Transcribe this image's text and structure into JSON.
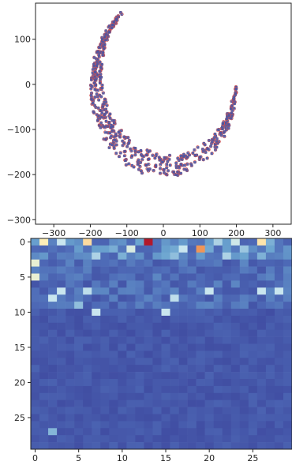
{
  "chart_data": [
    {
      "type": "scatter",
      "title": "",
      "xlabel": "",
      "ylabel": "",
      "xlim": [
        -350,
        350
      ],
      "ylim": [
        -310,
        180
      ],
      "xticks": [
        -300,
        -200,
        -100,
        0,
        100,
        200,
        300
      ],
      "xtick_labels": [
        "−300",
        "−200",
        "−100",
        "0",
        "100",
        "200",
        "300"
      ],
      "yticks": [
        100,
        0,
        -100,
        -200,
        -300
      ],
      "ytick_labels": [
        "100",
        "0",
        "−100",
        "−200",
        "−300"
      ],
      "grid": false,
      "arc": {
        "center": [
          0,
          0
        ],
        "radius_min": 150,
        "radius_max": 200,
        "angle_start_deg": 0,
        "angle_end_deg": -235,
        "band_center_offset_y": -10
      },
      "series": [
        {
          "marker": "circle-open",
          "color": "#d9534f"
        },
        {
          "marker": "square-filled",
          "color": "#4a55a2"
        }
      ]
    },
    {
      "type": "heatmap",
      "title": "",
      "rows": 30,
      "cols": 30,
      "xticks": [
        0,
        5,
        10,
        15,
        20,
        25
      ],
      "xtick_labels": [
        "0",
        "5",
        "10",
        "15",
        "20",
        "25"
      ],
      "yticks": [
        0,
        5,
        10,
        15,
        20,
        25
      ],
      "ytick_labels": [
        "0",
        "5",
        "10",
        "15",
        "20",
        "25"
      ],
      "colormap": [
        "#3f4aa0",
        "#4f6cb8",
        "#6aa3cf",
        "#c9e6ef",
        "#fff6c0",
        "#f7a35c",
        "#b2182b"
      ],
      "highlights": [
        {
          "row": 0,
          "col": 13,
          "v": 1.0
        },
        {
          "row": 1,
          "col": 19,
          "v": 0.85
        },
        {
          "row": 0,
          "col": 6,
          "v": 0.72
        },
        {
          "row": 0,
          "col": 26,
          "v": 0.7
        },
        {
          "row": 0,
          "col": 1,
          "v": 0.68
        },
        {
          "row": 3,
          "col": 0,
          "v": 0.6
        },
        {
          "row": 5,
          "col": 0,
          "v": 0.6
        },
        {
          "row": 0,
          "col": 3,
          "v": 0.5
        },
        {
          "row": 1,
          "col": 11,
          "v": 0.55
        },
        {
          "row": 1,
          "col": 17,
          "v": 0.5
        },
        {
          "row": 0,
          "col": 23,
          "v": 0.52
        },
        {
          "row": 0,
          "col": 21,
          "v": 0.45
        },
        {
          "row": 7,
          "col": 3,
          "v": 0.5
        },
        {
          "row": 7,
          "col": 6,
          "v": 0.48
        },
        {
          "row": 8,
          "col": 2,
          "v": 0.5
        },
        {
          "row": 8,
          "col": 16,
          "v": 0.48
        },
        {
          "row": 10,
          "col": 7,
          "v": 0.5
        },
        {
          "row": 10,
          "col": 15,
          "v": 0.5
        },
        {
          "row": 7,
          "col": 20,
          "v": 0.5
        },
        {
          "row": 7,
          "col": 26,
          "v": 0.5
        },
        {
          "row": 7,
          "col": 28,
          "v": 0.5
        },
        {
          "row": 2,
          "col": 7,
          "v": 0.45
        },
        {
          "row": 2,
          "col": 22,
          "v": 0.45
        },
        {
          "row": 9,
          "col": 5,
          "v": 0.4
        },
        {
          "row": 2,
          "col": 16,
          "v": 0.4
        },
        {
          "row": 1,
          "col": 24,
          "v": 0.42
        },
        {
          "row": 27,
          "col": 2,
          "v": 0.38
        }
      ]
    }
  ]
}
